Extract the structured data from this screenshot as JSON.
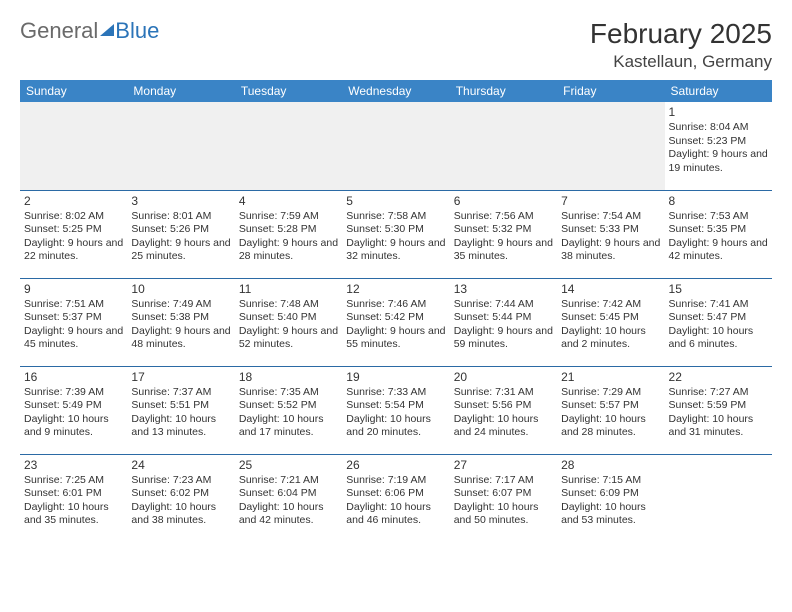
{
  "logo": {
    "part1": "General",
    "part2": "Blue"
  },
  "title": "February 2025",
  "location": "Kastellaun, Germany",
  "style": {
    "header_bg": "#3a84c6",
    "header_text": "#ffffff",
    "row_border": "#2b6aa5",
    "empty_bg": "#f0f0f0",
    "logo_gray": "#6a6a6a",
    "logo_blue": "#2b74b8",
    "month_fontsize": 28,
    "location_fontsize": 17,
    "dayhead_fontsize": 12,
    "daynum_fontsize": 12,
    "daytext_fontsize": 10.5
  },
  "day_headers": [
    "Sunday",
    "Monday",
    "Tuesday",
    "Wednesday",
    "Thursday",
    "Friday",
    "Saturday"
  ],
  "weeks": [
    [
      null,
      null,
      null,
      null,
      null,
      null,
      {
        "n": "1",
        "sr": "8:04 AM",
        "ss": "5:23 PM",
        "dl": "9 hours and 19 minutes."
      }
    ],
    [
      {
        "n": "2",
        "sr": "8:02 AM",
        "ss": "5:25 PM",
        "dl": "9 hours and 22 minutes."
      },
      {
        "n": "3",
        "sr": "8:01 AM",
        "ss": "5:26 PM",
        "dl": "9 hours and 25 minutes."
      },
      {
        "n": "4",
        "sr": "7:59 AM",
        "ss": "5:28 PM",
        "dl": "9 hours and 28 minutes."
      },
      {
        "n": "5",
        "sr": "7:58 AM",
        "ss": "5:30 PM",
        "dl": "9 hours and 32 minutes."
      },
      {
        "n": "6",
        "sr": "7:56 AM",
        "ss": "5:32 PM",
        "dl": "9 hours and 35 minutes."
      },
      {
        "n": "7",
        "sr": "7:54 AM",
        "ss": "5:33 PM",
        "dl": "9 hours and 38 minutes."
      },
      {
        "n": "8",
        "sr": "7:53 AM",
        "ss": "5:35 PM",
        "dl": "9 hours and 42 minutes."
      }
    ],
    [
      {
        "n": "9",
        "sr": "7:51 AM",
        "ss": "5:37 PM",
        "dl": "9 hours and 45 minutes."
      },
      {
        "n": "10",
        "sr": "7:49 AM",
        "ss": "5:38 PM",
        "dl": "9 hours and 48 minutes."
      },
      {
        "n": "11",
        "sr": "7:48 AM",
        "ss": "5:40 PM",
        "dl": "9 hours and 52 minutes."
      },
      {
        "n": "12",
        "sr": "7:46 AM",
        "ss": "5:42 PM",
        "dl": "9 hours and 55 minutes."
      },
      {
        "n": "13",
        "sr": "7:44 AM",
        "ss": "5:44 PM",
        "dl": "9 hours and 59 minutes."
      },
      {
        "n": "14",
        "sr": "7:42 AM",
        "ss": "5:45 PM",
        "dl": "10 hours and 2 minutes."
      },
      {
        "n": "15",
        "sr": "7:41 AM",
        "ss": "5:47 PM",
        "dl": "10 hours and 6 minutes."
      }
    ],
    [
      {
        "n": "16",
        "sr": "7:39 AM",
        "ss": "5:49 PM",
        "dl": "10 hours and 9 minutes."
      },
      {
        "n": "17",
        "sr": "7:37 AM",
        "ss": "5:51 PM",
        "dl": "10 hours and 13 minutes."
      },
      {
        "n": "18",
        "sr": "7:35 AM",
        "ss": "5:52 PM",
        "dl": "10 hours and 17 minutes."
      },
      {
        "n": "19",
        "sr": "7:33 AM",
        "ss": "5:54 PM",
        "dl": "10 hours and 20 minutes."
      },
      {
        "n": "20",
        "sr": "7:31 AM",
        "ss": "5:56 PM",
        "dl": "10 hours and 24 minutes."
      },
      {
        "n": "21",
        "sr": "7:29 AM",
        "ss": "5:57 PM",
        "dl": "10 hours and 28 minutes."
      },
      {
        "n": "22",
        "sr": "7:27 AM",
        "ss": "5:59 PM",
        "dl": "10 hours and 31 minutes."
      }
    ],
    [
      {
        "n": "23",
        "sr": "7:25 AM",
        "ss": "6:01 PM",
        "dl": "10 hours and 35 minutes."
      },
      {
        "n": "24",
        "sr": "7:23 AM",
        "ss": "6:02 PM",
        "dl": "10 hours and 38 minutes."
      },
      {
        "n": "25",
        "sr": "7:21 AM",
        "ss": "6:04 PM",
        "dl": "10 hours and 42 minutes."
      },
      {
        "n": "26",
        "sr": "7:19 AM",
        "ss": "6:06 PM",
        "dl": "10 hours and 46 minutes."
      },
      {
        "n": "27",
        "sr": "7:17 AM",
        "ss": "6:07 PM",
        "dl": "10 hours and 50 minutes."
      },
      {
        "n": "28",
        "sr": "7:15 AM",
        "ss": "6:09 PM",
        "dl": "10 hours and 53 minutes."
      },
      null
    ]
  ],
  "labels": {
    "sunrise": "Sunrise:",
    "sunset": "Sunset:",
    "daylight": "Daylight:"
  }
}
